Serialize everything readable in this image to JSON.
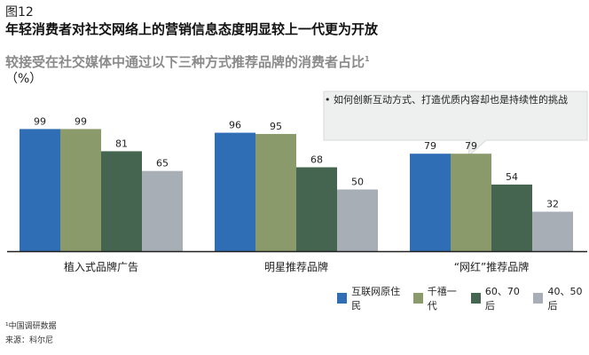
{
  "figure_label": "图12",
  "footnote": "¹中国调研数据",
  "source": "来源：科尔尼",
  "chart_data": {
    "type": "bar",
    "title": "年轻消费者对社交网络上的营销信息态度明显较上一代更为开放",
    "subtitle": "较接受在社交媒体中通过以下三种方式推荐品牌的消费者占比",
    "subtitle_sup": "1",
    "ylabel": "（%）",
    "xlabel": "",
    "ylim": [
      0,
      100
    ],
    "grid": false,
    "legend_position": "bottom-right",
    "categories": [
      "植入式品牌广告",
      "明星推荐品牌",
      "“网红”推荐品牌"
    ],
    "series": [
      {
        "name": "互联网原住民",
        "color": "#2f6db5",
        "values": [
          99,
          96,
          79
        ]
      },
      {
        "name": "千禧一代",
        "color": "#8b9a6b",
        "values": [
          99,
          95,
          79
        ]
      },
      {
        "name": "60、70后",
        "color": "#456551",
        "values": [
          81,
          68,
          54
        ]
      },
      {
        "name": "40、50后",
        "color": "#a8aeb6",
        "values": [
          65,
          50,
          32
        ]
      }
    ],
    "annotation": "• 如何创新互动方式、打造优质内容却也是持续性的挑战"
  }
}
